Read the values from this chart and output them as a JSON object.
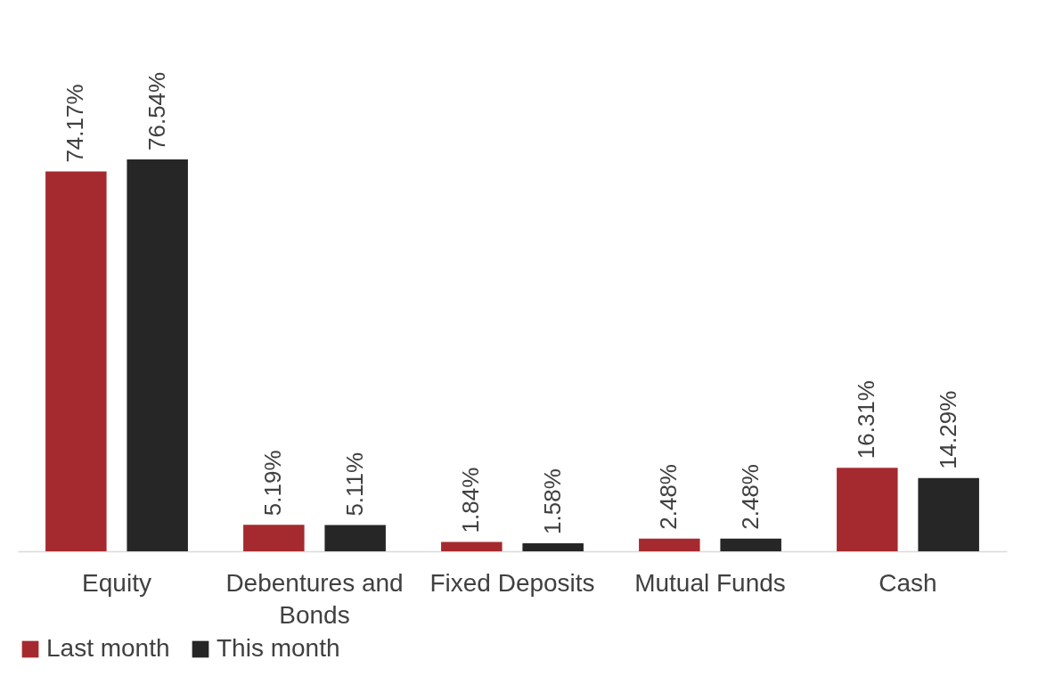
{
  "chart_data": {
    "type": "bar",
    "categories": [
      "Equity",
      "Debentures and Bonds",
      "Fixed Deposits",
      "Mutual Funds",
      "Cash"
    ],
    "series": [
      {
        "name": "Last month",
        "color": "#a52a2f",
        "values": [
          74.17,
          5.19,
          1.84,
          2.48,
          16.31
        ],
        "value_labels": [
          "74.17%",
          "5.19%",
          "1.84%",
          "2.48%",
          "16.31%"
        ]
      },
      {
        "name": "This month",
        "color": "#262626",
        "values": [
          76.54,
          5.11,
          1.58,
          2.48,
          14.29
        ],
        "value_labels": [
          "76.54%",
          "5.11%",
          "1.58%",
          "2.48%",
          "14.29%"
        ]
      }
    ],
    "legend": "bottom"
  }
}
